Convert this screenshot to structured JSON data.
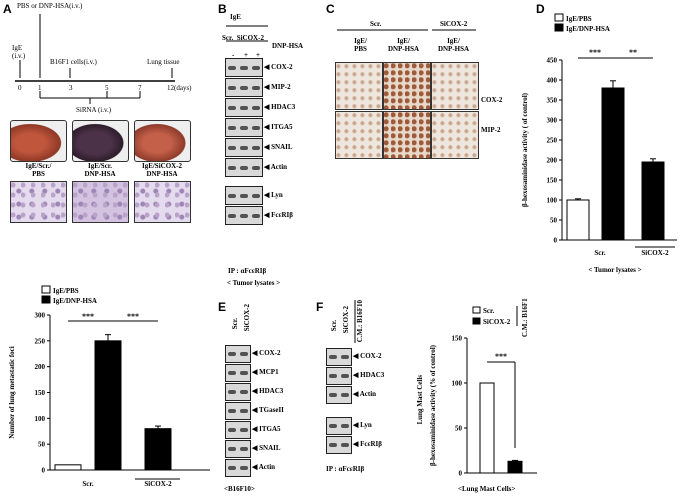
{
  "panels": {
    "A": {
      "label": "A",
      "timeline": {
        "top_text": "PBS or DNP-HSA(i.v.)",
        "ige_text": "IgE\n(i.v.)",
        "b16_text": "B16F1 cells(i.v.)",
        "lung_text": "Lung tissue",
        "ticks": [
          "0",
          "1",
          "3",
          "5",
          "7",
          "12(days)"
        ],
        "sirna_text": "SiRNA (i.v.)"
      },
      "lung_labels": [
        "IgE/Scr./\nPBS",
        "IgE/Scr.\nDNP-HSA",
        "IgE/SiCOX-2\nDNP-HSA"
      ]
    },
    "B": {
      "label": "B",
      "top": "IgE",
      "conds": "Scr.  SiCOX-2",
      "dnp": "DNP-HSA",
      "signs": [
        "-",
        "+",
        "+"
      ],
      "bands": [
        "COX-2",
        "MIP-2",
        "HDAC3",
        "ITGA5",
        "SNAIL",
        "Actin"
      ],
      "ip_bands": [
        "Lyn",
        "FcεRIβ"
      ],
      "ip": "IP : αFcεRIβ",
      "footer": "< Tumor  lysates >"
    },
    "C": {
      "label": "C",
      "scr": "Scr.",
      "sicox": "SiCOX-2",
      "cols": [
        "IgE/\nPBS",
        "IgE/\nDNP-HSA",
        "IgE/\nDNP-HSA"
      ],
      "rows": [
        "COX-2",
        "MIP-2"
      ]
    },
    "D": {
      "label": "D",
      "footer": "< Tumor lysates >"
    },
    "E": {
      "label": "E",
      "conds": [
        "Scr.",
        "SiCOX-2"
      ],
      "bands": [
        "COX-2",
        "MCP1",
        "HDAC3",
        "TGaseII",
        "ITGA5",
        "SNAIL",
        "Actin"
      ],
      "footer": "<B16F10>"
    },
    "F": {
      "label": "F",
      "conds": [
        "Scr.",
        "SiCOX-2"
      ],
      "cm": "C.M.: B16F10",
      "bands": [
        "COX-2",
        "HDAC3",
        "Actin"
      ],
      "ip_bands": [
        "Lyn",
        "FcεRIβ"
      ],
      "side": "Lung Mast Cells",
      "ip": "IP : αFcεRIβ",
      "footer": "<Lung Mast Cells>"
    }
  },
  "chart_data": [
    {
      "id": "A-foci",
      "type": "bar",
      "legend": [
        "IgE/PBS",
        "IgE/DNP-HSA"
      ],
      "ylabel": "Number of lung metastatic foci",
      "ylim": [
        0,
        300
      ],
      "yticks": [
        0,
        50,
        100,
        150,
        200,
        250,
        300
      ],
      "groups": [
        "Scr.",
        "SiCOX-2"
      ],
      "bars": [
        {
          "group": "Scr.",
          "series": "IgE/PBS",
          "value": 10,
          "err": 0
        },
        {
          "group": "Scr.",
          "series": "IgE/DNP-HSA",
          "value": 250,
          "err": 12
        },
        {
          "group": "SiCOX-2",
          "series": "IgE/DNP-HSA",
          "value": 80,
          "err": 5
        }
      ],
      "significance": [
        "***",
        "***"
      ]
    },
    {
      "id": "D-hex",
      "type": "bar",
      "legend": [
        "IgE/PBS",
        "IgE/DNP-HSA"
      ],
      "ylabel": "β-hexosaminidase  activity  ( of control)",
      "ylim": [
        0,
        450
      ],
      "yticks": [
        0,
        50,
        100,
        150,
        200,
        250,
        300,
        350,
        400,
        450
      ],
      "groups": [
        "Scr.",
        "SiCOX-2"
      ],
      "bars": [
        {
          "group": "Scr.",
          "series": "IgE/PBS",
          "value": 100,
          "err": 3
        },
        {
          "group": "Scr.",
          "series": "IgE/DNP-HSA",
          "value": 380,
          "err": 18
        },
        {
          "group": "SiCOX-2",
          "series": "IgE/DNP-HSA",
          "value": 195,
          "err": 8
        }
      ],
      "significance": [
        "***",
        "**"
      ]
    },
    {
      "id": "F-hex",
      "type": "bar",
      "legend": [
        "Scr.",
        "SiCOX-2"
      ],
      "legend_note": "C.M.: B16F10",
      "ylabel": "β-hexosaminidase  activity  (% of control)",
      "ylim": [
        0,
        150
      ],
      "yticks": [
        0,
        50,
        100,
        150
      ],
      "bars": [
        {
          "series": "Scr.",
          "value": 100,
          "err": 0
        },
        {
          "series": "SiCOX-2",
          "value": 13,
          "err": 1
        }
      ],
      "significance": [
        "***"
      ]
    }
  ]
}
